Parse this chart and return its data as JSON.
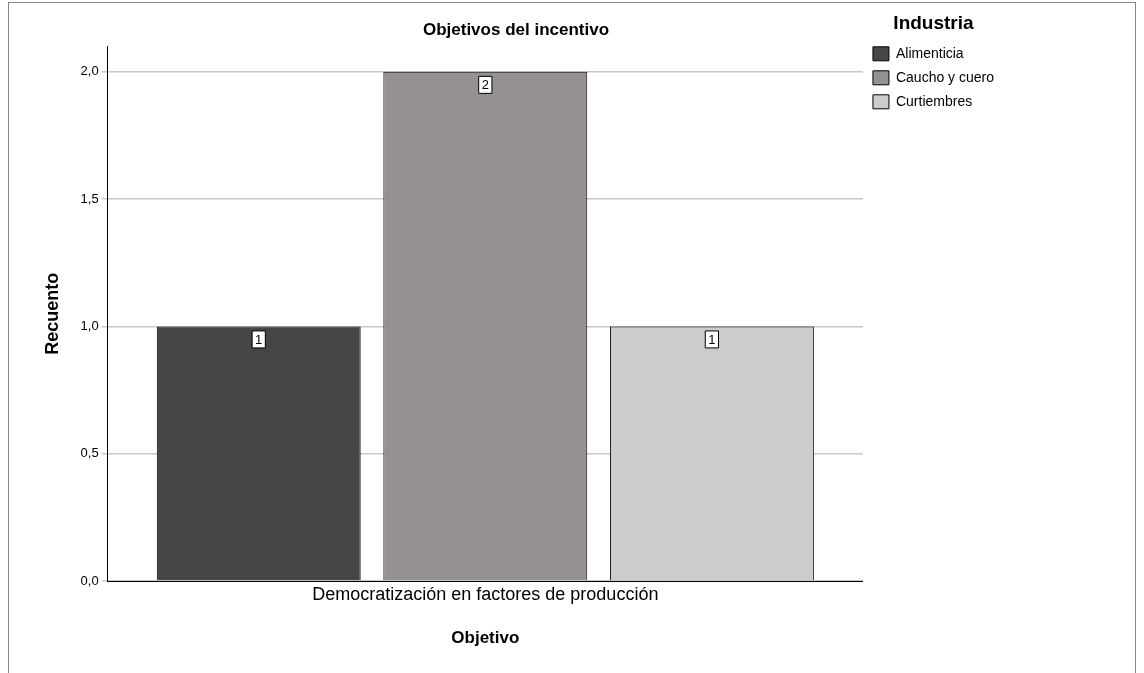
{
  "chart_data": {
    "type": "bar",
    "title": "Objetivos del incentivo",
    "xlabel": "Objetivo",
    "ylabel": "Recuento",
    "legend_title": "Industria",
    "categories": [
      "Democratización en factores de producción"
    ],
    "series": [
      {
        "name": "Alimenticia",
        "color": "#464646",
        "values": [
          1
        ]
      },
      {
        "name": "Caucho y cuero",
        "color": "#959190",
        "values": [
          2
        ]
      },
      {
        "name": "Curtiembres",
        "color": "#cccccc",
        "values": [
          1
        ]
      }
    ],
    "ylim": [
      0,
      2.1
    ],
    "yticks": [
      {
        "value": 0,
        "label": "0,0"
      },
      {
        "value": 0.5,
        "label": "0,5"
      },
      {
        "value": 1,
        "label": "1,0"
      },
      {
        "value": 1.5,
        "label": "1,5"
      },
      {
        "value": 2,
        "label": "2,0"
      }
    ],
    "grid": "y",
    "legend": "top right",
    "data_labels": true
  }
}
